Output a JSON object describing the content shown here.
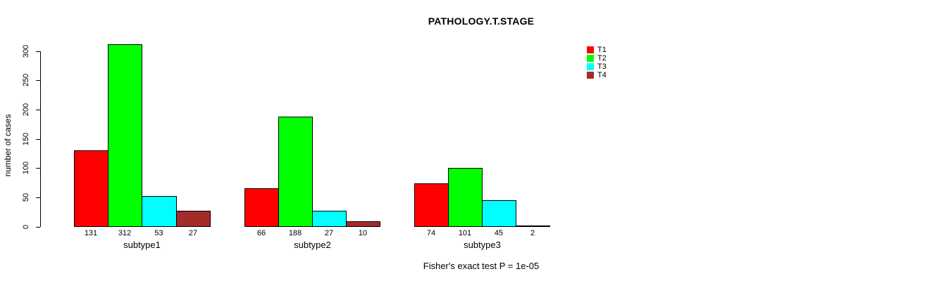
{
  "title": "PATHOLOGY.T.STAGE",
  "annotation": "Fisher's exact test P = 1e-05",
  "chart_data": {
    "type": "bar",
    "title": "PATHOLOGY.T.STAGE",
    "xlabel": "",
    "ylabel": "number of cases",
    "categories": [
      "subtype1",
      "subtype2",
      "subtype3"
    ],
    "series": [
      {
        "name": "T1",
        "color": "#FF0000",
        "values": [
          131,
          66,
          74
        ]
      },
      {
        "name": "T2",
        "color": "#00FF00",
        "values": [
          312,
          188,
          101
        ]
      },
      {
        "name": "T3",
        "color": "#00FFFF",
        "values": [
          53,
          27,
          45
        ]
      },
      {
        "name": "T4",
        "color": "#A52A2A",
        "values": [
          27,
          10,
          2
        ]
      }
    ],
    "bar_value_labels": [
      [
        131,
        312,
        53,
        27
      ],
      [
        66,
        188,
        27,
        10
      ],
      [
        74,
        101,
        45,
        2
      ]
    ],
    "yticks": [
      0,
      50,
      100,
      150,
      200,
      250,
      300
    ],
    "ylim": [
      0,
      312
    ],
    "grid": false,
    "legend_position": "top-right",
    "annotation": "Fisher's exact test P = 1e-05",
    "axis_color": "#000000",
    "background_color": "#FFFFFF"
  }
}
